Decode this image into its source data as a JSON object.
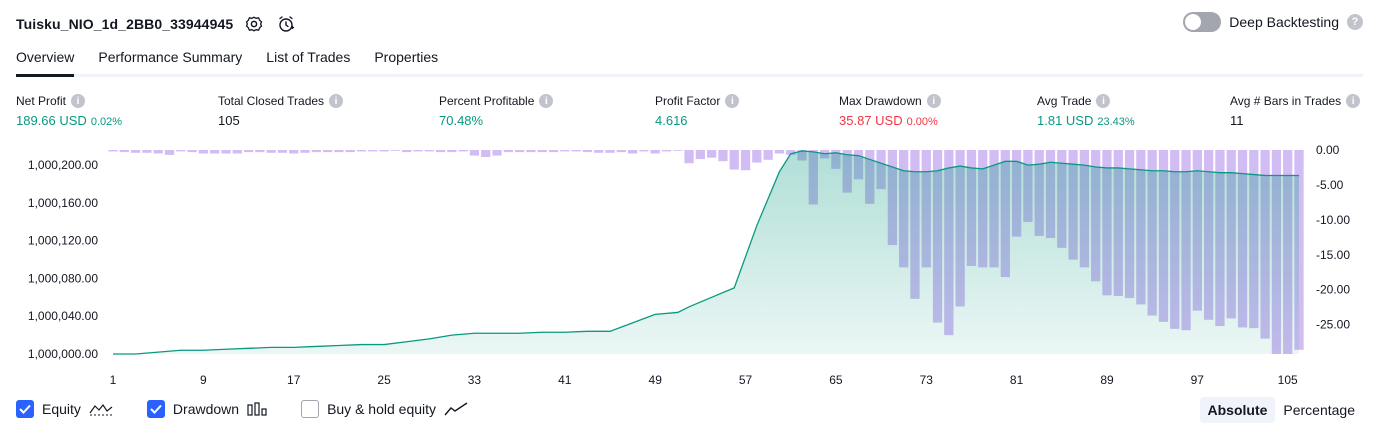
{
  "header": {
    "title": "Tuisku_NIO_1d_2BB0_33944945",
    "deep_backtesting_label": "Deep Backtesting",
    "deep_backtesting_enabled": false
  },
  "tabs": [
    {
      "label": "Overview",
      "active": true
    },
    {
      "label": "Performance Summary",
      "active": false
    },
    {
      "label": "List of Trades",
      "active": false
    },
    {
      "label": "Properties",
      "active": false
    }
  ],
  "metrics": [
    {
      "label": "Net Profit",
      "value": "189.66 USD",
      "percent": "0.02%",
      "color": "#089981"
    },
    {
      "label": "Total Closed Trades",
      "value": "105",
      "percent": "",
      "color": "#131722"
    },
    {
      "label": "Percent Profitable",
      "value": "70.48%",
      "percent": "",
      "color": "#089981"
    },
    {
      "label": "Profit Factor",
      "value": "4.616",
      "percent": "",
      "color": "#089981"
    },
    {
      "label": "Max Drawdown",
      "value": "35.87 USD",
      "percent": "0.00%",
      "color": "#f23645"
    },
    {
      "label": "Avg Trade",
      "value": "1.81 USD",
      "percent": "23.43%",
      "color": "#089981"
    },
    {
      "label": "Avg # Bars in Trades",
      "value": "11",
      "percent": "",
      "color": "#131722"
    }
  ],
  "chart_data": {
    "type": "area",
    "x_ticks": [
      1,
      9,
      17,
      25,
      33,
      41,
      49,
      57,
      65,
      73,
      81,
      89,
      97,
      105
    ],
    "x_range": [
      1,
      106
    ],
    "left_axis": {
      "ticks": [
        "1,000,000.00",
        "1,000,040.00",
        "1,000,080.00",
        "1,000,120.00",
        "1,000,160.00",
        "1,000,200.00"
      ],
      "range": [
        1000000,
        1000216
      ]
    },
    "right_axis": {
      "ticks": [
        "0.00",
        "-5.00",
        "-10.00",
        "-15.00",
        "-20.00",
        "-25.00"
      ],
      "range": [
        0,
        -29.2
      ]
    },
    "series": [
      {
        "name": "Equity",
        "type": "area",
        "color": "#089981",
        "x": [
          1,
          3,
          5,
          7,
          9,
          11,
          13,
          15,
          17,
          19,
          21,
          23,
          25,
          27,
          29,
          31,
          33,
          35,
          37,
          39,
          41,
          43,
          45,
          47,
          49,
          51,
          52,
          54,
          56,
          58,
          60,
          61,
          62,
          63,
          64,
          65,
          66,
          67,
          68,
          69,
          70,
          71,
          72,
          73,
          74,
          75,
          76,
          77,
          78,
          79,
          80,
          81,
          82,
          83,
          84,
          85,
          86,
          87,
          88,
          89,
          90,
          91,
          92,
          93,
          94,
          95,
          96,
          97,
          98,
          99,
          100,
          101,
          102,
          103,
          104,
          105,
          106
        ],
        "y": [
          1000000,
          1000000,
          1000002,
          1000004,
          1000004,
          1000005,
          1000006,
          1000007,
          1000007,
          1000008,
          1000009,
          1000010,
          1000010,
          1000013,
          1000016,
          1000020,
          1000022,
          1000022,
          1000022,
          1000023,
          1000023,
          1000024,
          1000024,
          1000033,
          1000042,
          1000044,
          1000050,
          1000060,
          1000070,
          1000136,
          1000193,
          1000212,
          1000215,
          1000214,
          1000212,
          1000213,
          1000211,
          1000210,
          1000206,
          1000202,
          1000198,
          1000194,
          1000193,
          1000193,
          1000194,
          1000197,
          1000199,
          1000197,
          1000196,
          1000200,
          1000204,
          1000204,
          1000200,
          1000201,
          1000203,
          1000202,
          1000201,
          1000200,
          1000198,
          1000197,
          1000197,
          1000196,
          1000195,
          1000194,
          1000194,
          1000193,
          1000193,
          1000194,
          1000193,
          1000192,
          1000192,
          1000191,
          1000190,
          1000189,
          1000189,
          1000189,
          1000189
        ]
      },
      {
        "name": "Drawdown",
        "type": "bar",
        "color": "#b39ddb",
        "x": [
          1,
          2,
          3,
          4,
          5,
          6,
          7,
          8,
          9,
          10,
          11,
          12,
          13,
          14,
          15,
          16,
          17,
          18,
          19,
          20,
          21,
          22,
          23,
          24,
          25,
          26,
          27,
          28,
          29,
          30,
          31,
          32,
          33,
          34,
          35,
          36,
          37,
          38,
          39,
          40,
          41,
          42,
          43,
          44,
          45,
          46,
          47,
          48,
          49,
          50,
          51,
          52,
          53,
          54,
          55,
          56,
          57,
          58,
          59,
          60,
          61,
          62,
          63,
          64,
          65,
          66,
          67,
          68,
          69,
          70,
          71,
          72,
          73,
          74,
          75,
          76,
          77,
          78,
          79,
          80,
          81,
          82,
          83,
          84,
          85,
          86,
          87,
          88,
          89,
          90,
          91,
          92,
          93,
          94,
          95,
          96,
          97,
          98,
          99,
          100,
          101,
          102,
          103,
          104,
          105,
          106
        ],
        "values": [
          -0.2,
          -0.3,
          -0.4,
          -0.4,
          -0.5,
          -0.7,
          -0.2,
          -0.3,
          -0.5,
          -0.5,
          -0.5,
          -0.5,
          -0.3,
          -0.3,
          -0.4,
          -0.4,
          -0.5,
          -0.4,
          -0.3,
          -0.3,
          -0.3,
          -0.3,
          -0.2,
          -0.2,
          -0.2,
          -0.1,
          -0.3,
          -0.2,
          -0.2,
          -0.3,
          -0.3,
          -0.2,
          -0.8,
          -1.0,
          -0.8,
          -0.3,
          -0.3,
          -0.3,
          -0.3,
          -0.3,
          -0.2,
          -0.2,
          -0.3,
          -0.4,
          -0.4,
          -0.3,
          -0.5,
          -0.2,
          -0.5,
          -0.2,
          -0.1,
          -1.9,
          -1.3,
          -1.1,
          -1.6,
          -2.8,
          -2.9,
          -1.8,
          -1.4,
          -0.5,
          -0.7,
          -1.5,
          -7.8,
          -1.2,
          -2.7,
          -6.1,
          -4.2,
          -7.7,
          -5.6,
          -13.6,
          -16.8,
          -21.3,
          -16.8,
          -24.7,
          -26.5,
          -22.4,
          -16.6,
          -16.8,
          -16.8,
          -18.2,
          -12.4,
          -10.3,
          -12.3,
          -12.6,
          -14.0,
          -15.7,
          -16.8,
          -18.8,
          -20.8,
          -20.9,
          -21.2,
          -22.1,
          -23.7,
          -24.6,
          -25.6,
          -25.8,
          -23.0,
          -24.3,
          -25.2,
          -24.1,
          -25.4,
          -25.5,
          -27.0,
          -29.2,
          -29.2,
          -28.6
        ]
      }
    ]
  },
  "legend": {
    "items": [
      {
        "label": "Equity",
        "checked": true,
        "icon": "equity-line-icon"
      },
      {
        "label": "Drawdown",
        "checked": true,
        "icon": "drawdown-bars-icon"
      },
      {
        "label": "Buy & hold equity",
        "checked": false,
        "icon": "buyhold-line-icon"
      }
    ]
  },
  "modes": {
    "absolute_label": "Absolute",
    "percentage_label": "Percentage",
    "active": "Absolute"
  }
}
